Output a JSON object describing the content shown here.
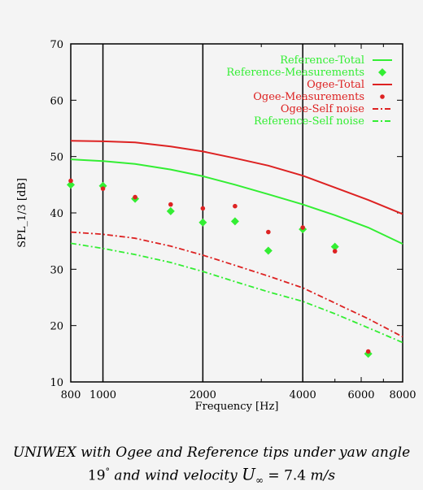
{
  "chart_data": {
    "type": "line",
    "title": "",
    "xlabel": "Frequency [Hz]",
    "ylabel": "SPL_1/3 [dB]",
    "xscale": "log",
    "xlim": [
      800,
      8000
    ],
    "ylim": [
      10,
      70
    ],
    "x_ticks": [
      {
        "value": 800,
        "label": "800"
      },
      {
        "value": 1000,
        "label": "1000"
      },
      {
        "value": 2000,
        "label": "2000"
      },
      {
        "value": 4000,
        "label": "4000"
      },
      {
        "value": 6000,
        "label": "6000"
      },
      {
        "value": 8000,
        "label": "8000"
      }
    ],
    "y_ticks": [
      {
        "value": 10,
        "label": "10"
      },
      {
        "value": 20,
        "label": "20"
      },
      {
        "value": 30,
        "label": "30"
      },
      {
        "value": 40,
        "label": "40"
      },
      {
        "value": 50,
        "label": "50"
      },
      {
        "value": 60,
        "label": "60"
      },
      {
        "value": 70,
        "label": "70"
      }
    ],
    "grid": "vertical at 1000, 2000, 4000",
    "legend_position": "top-right",
    "series": [
      {
        "name": "Reference-Total",
        "style": "solid",
        "color": "#33ee33",
        "x": [
          800,
          1000,
          1250,
          1600,
          2000,
          2500,
          3150,
          4000,
          5000,
          6300,
          8000
        ],
        "y": [
          49.5,
          49.2,
          48.7,
          47.7,
          46.5,
          45.0,
          43.3,
          41.5,
          39.6,
          37.4,
          34.5
        ]
      },
      {
        "name": "Reference-Measurements",
        "style": "diamond",
        "color": "#33ee33",
        "x": [
          800,
          1000,
          1250,
          1600,
          2000,
          2500,
          3150,
          4000,
          5000,
          6300
        ],
        "y": [
          45.0,
          44.8,
          42.5,
          40.3,
          38.3,
          38.5,
          33.3,
          37.1,
          34.0,
          15.0
        ]
      },
      {
        "name": "Ogee-Total",
        "style": "solid",
        "color": "#dd2222",
        "x": [
          800,
          1000,
          1250,
          1600,
          2000,
          2500,
          3150,
          4000,
          5000,
          6300,
          8000
        ],
        "y": [
          52.8,
          52.7,
          52.5,
          51.8,
          50.9,
          49.7,
          48.4,
          46.6,
          44.5,
          42.3,
          39.8
        ]
      },
      {
        "name": "Ogee-Measurements",
        "style": "dot",
        "color": "#dd2222",
        "x": [
          800,
          1000,
          1250,
          1600,
          2000,
          2500,
          3150,
          4000,
          5000,
          6300
        ],
        "y": [
          45.7,
          44.3,
          42.8,
          41.5,
          40.8,
          41.2,
          36.6,
          37.4,
          33.2,
          15.4
        ]
      },
      {
        "name": "Ogee-Self noise",
        "style": "dashdot",
        "color": "#dd2222",
        "x": [
          800,
          1000,
          1250,
          1600,
          2000,
          2500,
          3150,
          4000,
          5000,
          6300,
          8000
        ],
        "y": [
          36.6,
          36.2,
          35.5,
          34.1,
          32.5,
          30.7,
          28.8,
          26.7,
          24.0,
          21.2,
          18.0
        ]
      },
      {
        "name": "Reference-Self noise",
        "style": "dashdot",
        "color": "#33ee33",
        "x": [
          800,
          1000,
          1250,
          1600,
          2000,
          2500,
          3150,
          4000,
          5000,
          6300,
          8000
        ],
        "y": [
          34.6,
          33.7,
          32.6,
          31.2,
          29.6,
          27.8,
          26.0,
          24.3,
          22.1,
          19.6,
          17.0
        ]
      }
    ]
  },
  "caption": {
    "line1": "UNIWEX with Ogee and Reference tips under yaw angle",
    "line2_prefix": "19",
    "line2_degree": "°",
    "line2_middle": " and wind velocity ",
    "line2_symbol": "U",
    "line2_subscript": "∞",
    "line2_value": " = 7.4 ",
    "line2_unit": "m/s"
  }
}
